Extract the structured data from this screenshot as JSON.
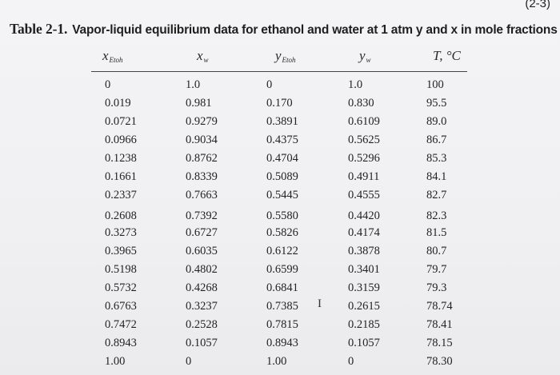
{
  "page_number": "(2-3)",
  "caption": {
    "label": "Table 2-1.",
    "text": "Vapor-liquid equilibrium data for ethanol and water at 1 atm y and x in mole fractions"
  },
  "headers": [
    {
      "main": "x",
      "sub": "Etoh"
    },
    {
      "main": "x",
      "sub": "w"
    },
    {
      "main": "y",
      "sub": "Etoh"
    },
    {
      "main": "y",
      "sub": "w"
    },
    {
      "main": "T, °C",
      "sub": ""
    }
  ],
  "rows": [
    [
      "0",
      "1.0",
      "0",
      "1.0",
      "100"
    ],
    [
      "0.019",
      "0.981",
      "0.170",
      "0.830",
      "95.5"
    ],
    [
      "0.0721",
      "0.9279",
      "0.3891",
      "0.6109",
      "89.0"
    ],
    [
      "0.0966",
      "0.9034",
      "0.4375",
      "0.5625",
      "86.7"
    ],
    [
      "0.1238",
      "0.8762",
      "0.4704",
      "0.5296",
      "85.3"
    ],
    [
      "0.1661",
      "0.8339",
      "0.5089",
      "0.4911",
      "84.1"
    ],
    [
      "0.2337",
      "0.7663",
      "0.5445",
      "0.4555",
      "82.7"
    ],
    [
      "0.2608",
      "0.7392",
      "0.5580",
      "0.4420",
      "82.3"
    ],
    [
      "0.3273",
      "0.6727",
      "0.5826",
      "0.4174",
      "81.5"
    ],
    [
      "0.3965",
      "0.6035",
      "0.6122",
      "0.3878",
      "80.7"
    ],
    [
      "0.5198",
      "0.4802",
      "0.6599",
      "0.3401",
      "79.7"
    ],
    [
      "0.5732",
      "0.4268",
      "0.6841",
      "0.3159",
      "79.3"
    ],
    [
      "0.6763",
      "0.3237",
      "0.7385",
      "0.2615",
      "78.74"
    ],
    [
      "0.7472",
      "0.2528",
      "0.7815",
      "0.2185",
      "78.41"
    ],
    [
      "0.8943",
      "0.1057",
      "0.8943",
      "0.1057",
      "78.15"
    ],
    [
      "1.00",
      "0",
      "1.00",
      "0",
      "78.30"
    ]
  ],
  "cursor_glyph": "I"
}
